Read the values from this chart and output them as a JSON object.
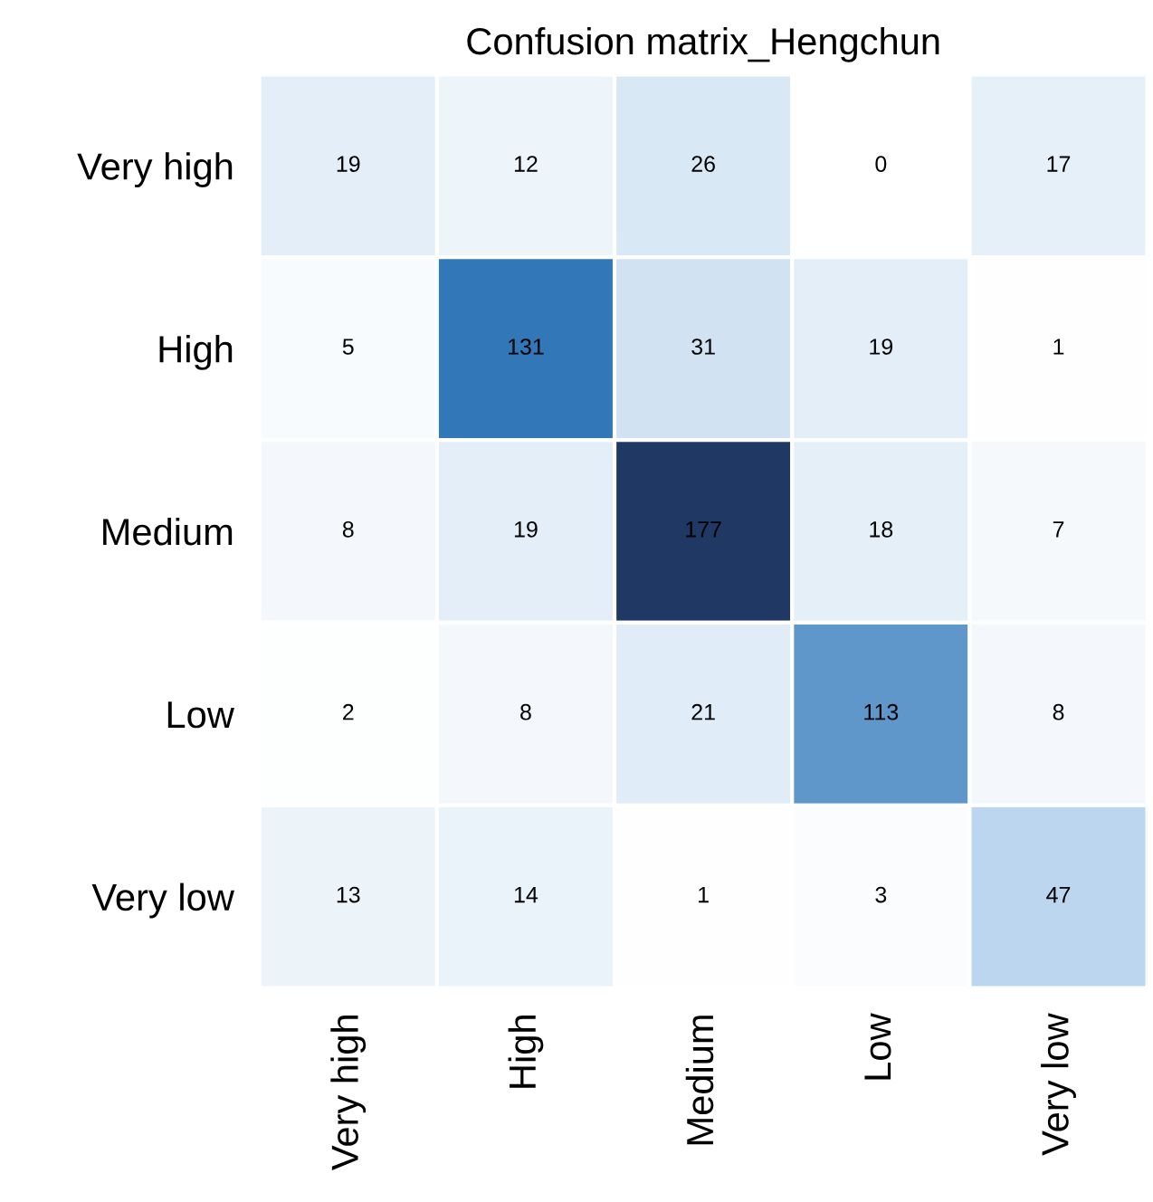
{
  "chart_data": {
    "type": "heatmap",
    "title": "Confusion matrix_Hengchun",
    "categories": [
      "Very high",
      "High",
      "Medium",
      "Low",
      "Very low"
    ],
    "data_labels": true,
    "y_categories": [
      "Very high",
      "High",
      "Medium",
      "Low",
      "Very low"
    ],
    "cells": [
      [
        19,
        12,
        26,
        0,
        17
      ],
      [
        5,
        131,
        31,
        19,
        1
      ],
      [
        8,
        19,
        177,
        18,
        7
      ],
      [
        2,
        8,
        21,
        113,
        8
      ],
      [
        13,
        14,
        1,
        3,
        47
      ]
    ]
  }
}
